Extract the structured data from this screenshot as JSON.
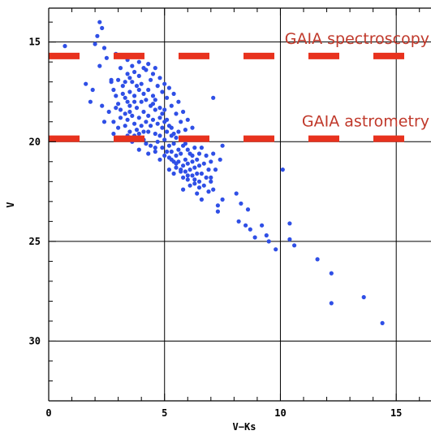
{
  "colors": {
    "points": "#2f4fe6",
    "limits": "#e8321e",
    "grid": "#000000",
    "frame": "#000000",
    "annotation_text": "#c0392b"
  },
  "chart_data": {
    "type": "scatter",
    "xlabel": "V−Ks",
    "ylabel": "V",
    "xlim": [
      0,
      16.5
    ],
    "ylim": [
      33,
      13.3
    ],
    "y_inverted": true,
    "grid": true,
    "x_ticks": [
      {
        "value": 0,
        "label": "0"
      },
      {
        "value": 5,
        "label": "5"
      },
      {
        "value": 10,
        "label": "10"
      },
      {
        "value": 15,
        "label": "15"
      }
    ],
    "y_ticks": [
      {
        "value": 15,
        "label": "15"
      },
      {
        "value": 20,
        "label": "20"
      },
      {
        "value": 25,
        "label": "25"
      },
      {
        "value": 30,
        "label": "30"
      }
    ],
    "annotations": [
      {
        "label": "GAIA spectroscopy",
        "y": 15.7
      },
      {
        "label": "GAIA astrometry",
        "y": 19.85
      }
    ],
    "points": [
      [
        0.7,
        15.2
      ],
      [
        2.1,
        14.7
      ],
      [
        2.2,
        14.0
      ],
      [
        2.3,
        14.3
      ],
      [
        2.0,
        15.1
      ],
      [
        2.4,
        15.3
      ],
      [
        2.5,
        15.8
      ],
      [
        2.9,
        15.6
      ],
      [
        3.4,
        15.9
      ],
      [
        2.2,
        16.2
      ],
      [
        2.7,
        16.9
      ],
      [
        1.6,
        17.1
      ],
      [
        1.9,
        17.4
      ],
      [
        1.8,
        18.0
      ],
      [
        2.3,
        18.2
      ],
      [
        2.4,
        19.0
      ],
      [
        2.8,
        19.6
      ],
      [
        3.4,
        19.7
      ],
      [
        4.1,
        19.9
      ],
      [
        4.6,
        20.3
      ],
      [
        5.4,
        21.6
      ],
      [
        7.1,
        17.8
      ],
      [
        7.5,
        20.2
      ],
      [
        7.4,
        20.9
      ],
      [
        7.0,
        21.8
      ],
      [
        7.1,
        22.4
      ],
      [
        6.1,
        22.2
      ],
      [
        7.5,
        22.9
      ],
      [
        7.3,
        23.2
      ],
      [
        7.3,
        23.5
      ],
      [
        8.1,
        22.6
      ],
      [
        8.3,
        23.1
      ],
      [
        8.6,
        23.4
      ],
      [
        8.2,
        24.0
      ],
      [
        8.5,
        24.2
      ],
      [
        8.7,
        24.4
      ],
      [
        8.9,
        24.8
      ],
      [
        9.2,
        24.2
      ],
      [
        9.4,
        24.7
      ],
      [
        9.5,
        25.0
      ],
      [
        9.8,
        25.4
      ],
      [
        10.1,
        21.4
      ],
      [
        10.4,
        24.1
      ],
      [
        10.4,
        24.9
      ],
      [
        10.6,
        25.2
      ],
      [
        11.6,
        25.9
      ],
      [
        12.2,
        26.6
      ],
      [
        12.2,
        28.1
      ],
      [
        13.6,
        27.8
      ],
      [
        14.4,
        29.1
      ],
      [
        2.7,
        17.0
      ],
      [
        2.8,
        17.4
      ],
      [
        2.9,
        17.7
      ],
      [
        3.0,
        18.1
      ],
      [
        3.1,
        18.4
      ],
      [
        3.2,
        17.2
      ],
      [
        3.3,
        17.8
      ],
      [
        3.3,
        18.6
      ],
      [
        3.4,
        18.9
      ],
      [
        3.5,
        17.5
      ],
      [
        3.5,
        18.2
      ],
      [
        3.6,
        17.0
      ],
      [
        3.6,
        18.7
      ],
      [
        3.7,
        19.1
      ],
      [
        3.7,
        17.7
      ],
      [
        3.8,
        18.3
      ],
      [
        3.8,
        19.4
      ],
      [
        3.9,
        17.4
      ],
      [
        3.9,
        18.8
      ],
      [
        4.0,
        18.0
      ],
      [
        4.0,
        19.2
      ],
      [
        4.1,
        17.6
      ],
      [
        4.1,
        18.5
      ],
      [
        4.2,
        19.0
      ],
      [
        4.2,
        17.9
      ],
      [
        4.3,
        18.7
      ],
      [
        4.3,
        19.5
      ],
      [
        4.4,
        18.2
      ],
      [
        4.4,
        19.2
      ],
      [
        4.5,
        17.7
      ],
      [
        4.5,
        18.9
      ],
      [
        4.6,
        19.6
      ],
      [
        4.6,
        18.4
      ],
      [
        4.7,
        19.1
      ],
      [
        4.7,
        20.0
      ],
      [
        4.8,
        18.8
      ],
      [
        4.8,
        19.7
      ],
      [
        4.9,
        19.3
      ],
      [
        4.9,
        20.3
      ],
      [
        5.0,
        19.0
      ],
      [
        5.0,
        19.9
      ],
      [
        5.1,
        20.5
      ],
      [
        5.1,
        19.5
      ],
      [
        5.2,
        20.2
      ],
      [
        5.2,
        20.8
      ],
      [
        5.3,
        19.7
      ],
      [
        5.3,
        20.5
      ],
      [
        5.4,
        21.0
      ],
      [
        5.4,
        20.1
      ],
      [
        5.5,
        20.7
      ],
      [
        5.5,
        21.3
      ],
      [
        5.6,
        20.4
      ],
      [
        5.6,
        21.0
      ],
      [
        5.7,
        21.5
      ],
      [
        5.7,
        20.6
      ],
      [
        5.8,
        21.2
      ],
      [
        5.8,
        21.8
      ],
      [
        5.9,
        20.9
      ],
      [
        5.9,
        21.5
      ],
      [
        6.0,
        21.1
      ],
      [
        6.0,
        21.9
      ],
      [
        6.1,
        21.4
      ],
      [
        6.2,
        21.0
      ],
      [
        6.2,
        21.7
      ],
      [
        6.3,
        21.3
      ],
      [
        6.3,
        22.1
      ],
      [
        6.4,
        21.6
      ],
      [
        6.5,
        21.2
      ],
      [
        6.5,
        22.0
      ],
      [
        6.6,
        21.6
      ],
      [
        6.7,
        21.1
      ],
      [
        6.7,
        22.2
      ],
      [
        6.8,
        21.8
      ],
      [
        6.9,
        21.4
      ],
      [
        6.9,
        22.5
      ],
      [
        7.0,
        22.0
      ],
      [
        3.1,
        16.3
      ],
      [
        3.4,
        16.6
      ],
      [
        3.6,
        16.2
      ],
      [
        3.9,
        16.7
      ],
      [
        4.2,
        16.4
      ],
      [
        4.4,
        16.9
      ],
      [
        4.7,
        17.2
      ],
      [
        4.9,
        17.5
      ],
      [
        5.1,
        17.8
      ],
      [
        5.3,
        18.2
      ],
      [
        5.5,
        18.6
      ],
      [
        5.7,
        19.0
      ],
      [
        5.9,
        19.4
      ],
      [
        6.1,
        19.9
      ],
      [
        6.3,
        20.3
      ],
      [
        6.5,
        20.6
      ],
      [
        2.6,
        18.5
      ],
      [
        2.8,
        19.0
      ],
      [
        3.0,
        19.3
      ],
      [
        3.2,
        19.8
      ],
      [
        3.6,
        20.0
      ],
      [
        3.9,
        20.4
      ],
      [
        4.3,
        20.6
      ],
      [
        4.8,
        20.9
      ],
      [
        5.2,
        21.4
      ],
      [
        5.8,
        22.4
      ],
      [
        6.4,
        22.6
      ],
      [
        6.6,
        22.9
      ],
      [
        3.0,
        16.9
      ],
      [
        3.2,
        17.6
      ],
      [
        3.4,
        18.0
      ],
      [
        3.5,
        18.5
      ],
      [
        3.7,
        18.0
      ],
      [
        3.8,
        17.2
      ],
      [
        4.0,
        17.1
      ],
      [
        4.1,
        19.5
      ],
      [
        4.3,
        17.4
      ],
      [
        4.5,
        18.1
      ],
      [
        4.6,
        17.9
      ],
      [
        4.8,
        18.3
      ],
      [
        4.9,
        18.6
      ],
      [
        5.0,
        18.4
      ],
      [
        5.1,
        18.9
      ],
      [
        5.2,
        19.2
      ],
      [
        5.3,
        19.3
      ],
      [
        5.4,
        19.6
      ],
      [
        5.5,
        19.8
      ],
      [
        5.6,
        19.5
      ],
      [
        5.7,
        19.9
      ],
      [
        5.8,
        20.2
      ],
      [
        5.9,
        20.1
      ],
      [
        6.0,
        20.4
      ],
      [
        6.1,
        20.6
      ],
      [
        6.2,
        20.7
      ],
      [
        6.4,
        20.9
      ],
      [
        6.6,
        20.3
      ],
      [
        6.8,
        20.7
      ],
      [
        7.0,
        21.0
      ],
      [
        7.2,
        21.4
      ],
      [
        7.1,
        20.6
      ],
      [
        3.3,
        17.0
      ],
      [
        3.5,
        16.8
      ],
      [
        3.7,
        16.5
      ],
      [
        3.9,
        16.0
      ],
      [
        4.1,
        16.3
      ],
      [
        4.3,
        16.1
      ],
      [
        4.5,
        16.6
      ],
      [
        4.6,
        16.3
      ],
      [
        4.8,
        16.8
      ],
      [
        5.0,
        17.1
      ],
      [
        5.2,
        17.3
      ],
      [
        5.4,
        17.6
      ],
      [
        5.6,
        18.0
      ],
      [
        5.8,
        18.5
      ],
      [
        6.0,
        18.9
      ],
      [
        6.2,
        19.3
      ],
      [
        2.9,
        18.3
      ],
      [
        3.1,
        18.8
      ],
      [
        3.3,
        19.2
      ],
      [
        3.5,
        19.5
      ],
      [
        3.7,
        19.7
      ],
      [
        3.9,
        19.6
      ],
      [
        4.2,
        20.1
      ],
      [
        4.4,
        20.2
      ],
      [
        4.6,
        20.5
      ],
      [
        5.0,
        20.7
      ],
      [
        5.3,
        20.9
      ],
      [
        5.5,
        21.1
      ],
      [
        5.7,
        21.4
      ],
      [
        6.0,
        21.7
      ],
      [
        6.3,
        21.9
      ],
      [
        6.5,
        22.3
      ]
    ]
  }
}
